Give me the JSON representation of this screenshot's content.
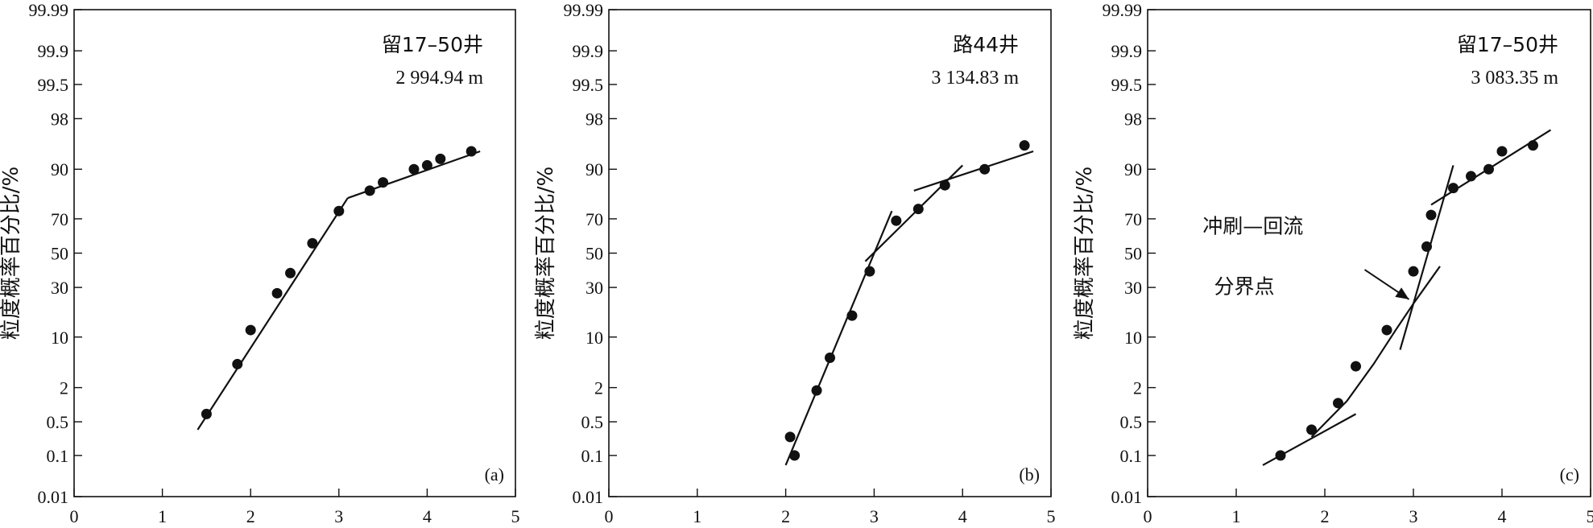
{
  "chart_data": [
    {
      "type": "scatter",
      "panel_label": "(a)",
      "well": "留17–50井",
      "depth": "2 994.94 m",
      "ylabel": "粒度概率百分比/%",
      "xlim": [
        0,
        5
      ],
      "xticks": [
        "0",
        "1",
        "2",
        "3",
        "4",
        "5"
      ],
      "ytick_values": [
        0.01,
        0.1,
        0.5,
        2,
        10,
        30,
        50,
        70,
        90,
        98,
        99.5,
        99.9,
        99.99
      ],
      "ytick_labels": [
        "0.01",
        "0.1",
        "0.5",
        "2",
        "10",
        "30",
        "50",
        "70",
        "90",
        "98",
        "99.5",
        "99.9",
        "99.99"
      ],
      "points": [
        [
          1.5,
          0.7
        ],
        [
          1.85,
          4.5
        ],
        [
          2.0,
          12
        ],
        [
          2.3,
          27
        ],
        [
          2.45,
          38
        ],
        [
          2.7,
          56
        ],
        [
          3.0,
          74
        ],
        [
          3.35,
          83
        ],
        [
          3.5,
          86
        ],
        [
          3.85,
          90
        ],
        [
          4.0,
          91
        ],
        [
          4.15,
          92.5
        ],
        [
          4.5,
          94
        ]
      ],
      "lines": [
        {
          "x": [
            1.4,
            3.1
          ],
          "y": [
            0.35,
            80
          ]
        },
        {
          "x": [
            3.1,
            4.6
          ],
          "y": [
            80,
            94
          ]
        }
      ]
    },
    {
      "type": "scatter",
      "panel_label": "(b)",
      "well": "路44井",
      "depth": "3 134.83 m",
      "ylabel": "粒度概率百分比/%",
      "xlim": [
        0,
        5
      ],
      "xticks": [
        "0",
        "1",
        "2",
        "3",
        "4",
        "5"
      ],
      "ytick_values": [
        0.01,
        0.1,
        0.5,
        2,
        10,
        30,
        50,
        70,
        90,
        98,
        99.5,
        99.9,
        99.99
      ],
      "ytick_labels": [
        "0.01",
        "0.1",
        "0.5",
        "2",
        "10",
        "30",
        "50",
        "70",
        "90",
        "98",
        "99.5",
        "99.9",
        "99.99"
      ],
      "points": [
        [
          2.05,
          0.25
        ],
        [
          2.1,
          0.1
        ],
        [
          2.35,
          1.8
        ],
        [
          2.5,
          5.5
        ],
        [
          2.75,
          17
        ],
        [
          2.95,
          39
        ],
        [
          3.25,
          69
        ],
        [
          3.5,
          75
        ],
        [
          3.8,
          85
        ],
        [
          4.25,
          90
        ],
        [
          4.7,
          95
        ]
      ],
      "lines": [
        {
          "x": [
            2.0,
            3.2
          ],
          "y": [
            0.06,
            74
          ]
        },
        {
          "x": [
            2.9,
            4.0
          ],
          "y": [
            45,
            91
          ]
        },
        {
          "x": [
            3.45,
            4.8
          ],
          "y": [
            83,
            94
          ]
        }
      ]
    },
    {
      "type": "scatter",
      "panel_label": "(c)",
      "well": "留17–50井",
      "depth": "3 083.35 m",
      "ylabel": "粒度概率百分比/%",
      "annotation": [
        "冲刷—回流",
        "分界点"
      ],
      "xlim": [
        0,
        5
      ],
      "xticks": [
        "0",
        "1",
        "2",
        "3",
        "4",
        "5"
      ],
      "ytick_values": [
        0.01,
        0.1,
        0.5,
        2,
        10,
        30,
        50,
        70,
        90,
        98,
        99.5,
        99.9,
        99.99
      ],
      "ytick_labels": [
        "0.01",
        "0.1",
        "0.5",
        "2",
        "10",
        "30",
        "50",
        "70",
        "90",
        "98",
        "99.5",
        "99.9",
        "99.99"
      ],
      "points": [
        [
          1.5,
          0.1
        ],
        [
          1.85,
          0.35
        ],
        [
          2.15,
          1.1
        ],
        [
          2.35,
          4.2
        ],
        [
          2.7,
          12
        ],
        [
          3.0,
          39
        ],
        [
          3.15,
          54
        ],
        [
          3.2,
          72
        ],
        [
          3.45,
          84
        ],
        [
          3.65,
          88
        ],
        [
          3.85,
          90
        ],
        [
          4.0,
          94
        ],
        [
          4.35,
          95
        ]
      ],
      "lines": [
        {
          "x": [
            1.3,
            2.35
          ],
          "y": [
            0.06,
            0.7
          ]
        },
        {
          "x": [
            2.85,
            3.45
          ],
          "y": [
            7,
            91
          ]
        },
        {
          "x": [
            3.2,
            4.55
          ],
          "y": [
            77,
            97
          ]
        },
        {
          "x": [
            1.85,
            2.25,
            2.55,
            2.8,
            3.0,
            3.3
          ],
          "y": [
            0.25,
            1.2,
            4.5,
            12,
            22,
            42
          ]
        }
      ],
      "arrow": {
        "from": [
          2.45,
          40
        ],
        "to": [
          2.95,
          24
        ]
      }
    }
  ]
}
